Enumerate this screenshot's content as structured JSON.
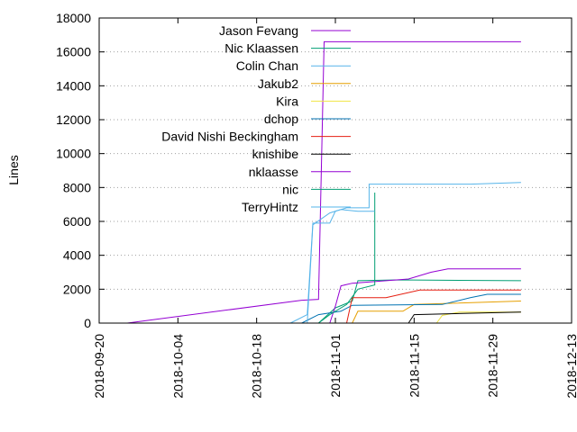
{
  "chart_data": {
    "type": "line",
    "title": "",
    "xlabel": "",
    "ylabel": "Lines",
    "xlim": [
      "2018-09-20",
      "2018-12-13"
    ],
    "ylim": [
      0,
      18000
    ],
    "x_ticks": [
      "2018-09-20",
      "2018-10-04",
      "2018-10-18",
      "2018-11-01",
      "2018-11-15",
      "2018-11-29",
      "2018-12-13"
    ],
    "y_ticks": [
      0,
      2000,
      4000,
      6000,
      8000,
      10000,
      12000,
      14000,
      16000,
      18000
    ],
    "grid": "horizontal dotted",
    "legend_position": "top-left inside",
    "series": [
      {
        "name": "Jason Fevang",
        "color": "#9400d3",
        "points": [
          [
            "2018-09-25",
            0
          ],
          [
            "2018-10-26",
            1350
          ],
          [
            "2018-10-29",
            1400
          ],
          [
            "2018-10-30",
            16600
          ],
          [
            "2018-12-04",
            16600
          ]
        ]
      },
      {
        "name": "Nic Klaassen",
        "color": "#009e73",
        "points": [
          [
            "2018-10-29",
            0
          ],
          [
            "2018-11-01",
            900
          ],
          [
            "2018-11-04",
            1300
          ],
          [
            "2018-11-05",
            2500
          ],
          [
            "2018-11-12",
            2550
          ],
          [
            "2018-12-04",
            2500
          ]
        ]
      },
      {
        "name": "Colin Chan",
        "color": "#56b4e9",
        "points": [
          [
            "2018-10-24",
            0
          ],
          [
            "2018-10-27",
            500
          ],
          [
            "2018-10-28",
            5900
          ],
          [
            "2018-10-31",
            5900
          ],
          [
            "2018-11-01",
            6600
          ],
          [
            "2018-11-03",
            6800
          ],
          [
            "2018-11-07",
            6800
          ],
          [
            "2018-11-07",
            8200
          ],
          [
            "2018-11-25",
            8200
          ],
          [
            "2018-12-04",
            8300
          ]
        ]
      },
      {
        "name": "Jakub2",
        "color": "#e69f00",
        "points": [
          [
            "2018-11-04",
            0
          ],
          [
            "2018-11-05",
            700
          ],
          [
            "2018-11-13",
            700
          ],
          [
            "2018-11-15",
            1100
          ],
          [
            "2018-11-29",
            1250
          ],
          [
            "2018-12-04",
            1300
          ]
        ]
      },
      {
        "name": "Kira",
        "color": "#f0e442",
        "points": [
          [
            "2018-11-19",
            0
          ],
          [
            "2018-11-20",
            450
          ],
          [
            "2018-11-23",
            650
          ],
          [
            "2018-12-04",
            650
          ]
        ]
      },
      {
        "name": "dchop",
        "color": "#0072b2",
        "points": [
          [
            "2018-10-26",
            0
          ],
          [
            "2018-10-29",
            500
          ],
          [
            "2018-11-02",
            700
          ],
          [
            "2018-11-04",
            1050
          ],
          [
            "2018-11-20",
            1100
          ],
          [
            "2018-11-25",
            1500
          ],
          [
            "2018-11-28",
            1700
          ],
          [
            "2018-12-04",
            1700
          ]
        ]
      },
      {
        "name": "David Nishi Beckingham",
        "color": "#e51e10",
        "points": [
          [
            "2018-11-03",
            0
          ],
          [
            "2018-11-04",
            1500
          ],
          [
            "2018-11-10",
            1500
          ],
          [
            "2018-11-16",
            1950
          ],
          [
            "2018-12-04",
            1950
          ]
        ]
      },
      {
        "name": "knishibe",
        "color": "#000000",
        "points": [
          [
            "2018-11-14",
            0
          ],
          [
            "2018-11-15",
            500
          ],
          [
            "2018-11-27",
            600
          ],
          [
            "2018-12-04",
            650
          ]
        ]
      },
      {
        "name": "nklaasse",
        "color": "#9400d3",
        "points": [
          [
            "2018-10-31",
            0
          ],
          [
            "2018-11-01",
            1000
          ],
          [
            "2018-11-02",
            2200
          ],
          [
            "2018-11-04",
            2350
          ],
          [
            "2018-11-14",
            2600
          ],
          [
            "2018-11-18",
            3000
          ],
          [
            "2018-11-21",
            3200
          ],
          [
            "2018-12-04",
            3200
          ]
        ]
      },
      {
        "name": "nic",
        "color": "#009e73",
        "points": [
          [
            "2018-10-29",
            0
          ],
          [
            "2018-10-31",
            500
          ],
          [
            "2018-11-03",
            1100
          ],
          [
            "2018-11-05",
            2000
          ],
          [
            "2018-11-08",
            2250
          ],
          [
            "2018-11-08",
            7600
          ],
          [
            "2018-11-08",
            7700
          ]
        ]
      },
      {
        "name": "TerryHintz",
        "color": "#56b4e9",
        "points": [
          [
            "2018-10-27",
            0
          ],
          [
            "2018-10-28",
            5800
          ],
          [
            "2018-10-31",
            6500
          ],
          [
            "2018-11-02",
            6700
          ],
          [
            "2018-11-05",
            6600
          ],
          [
            "2018-11-08",
            6600
          ]
        ]
      }
    ]
  }
}
